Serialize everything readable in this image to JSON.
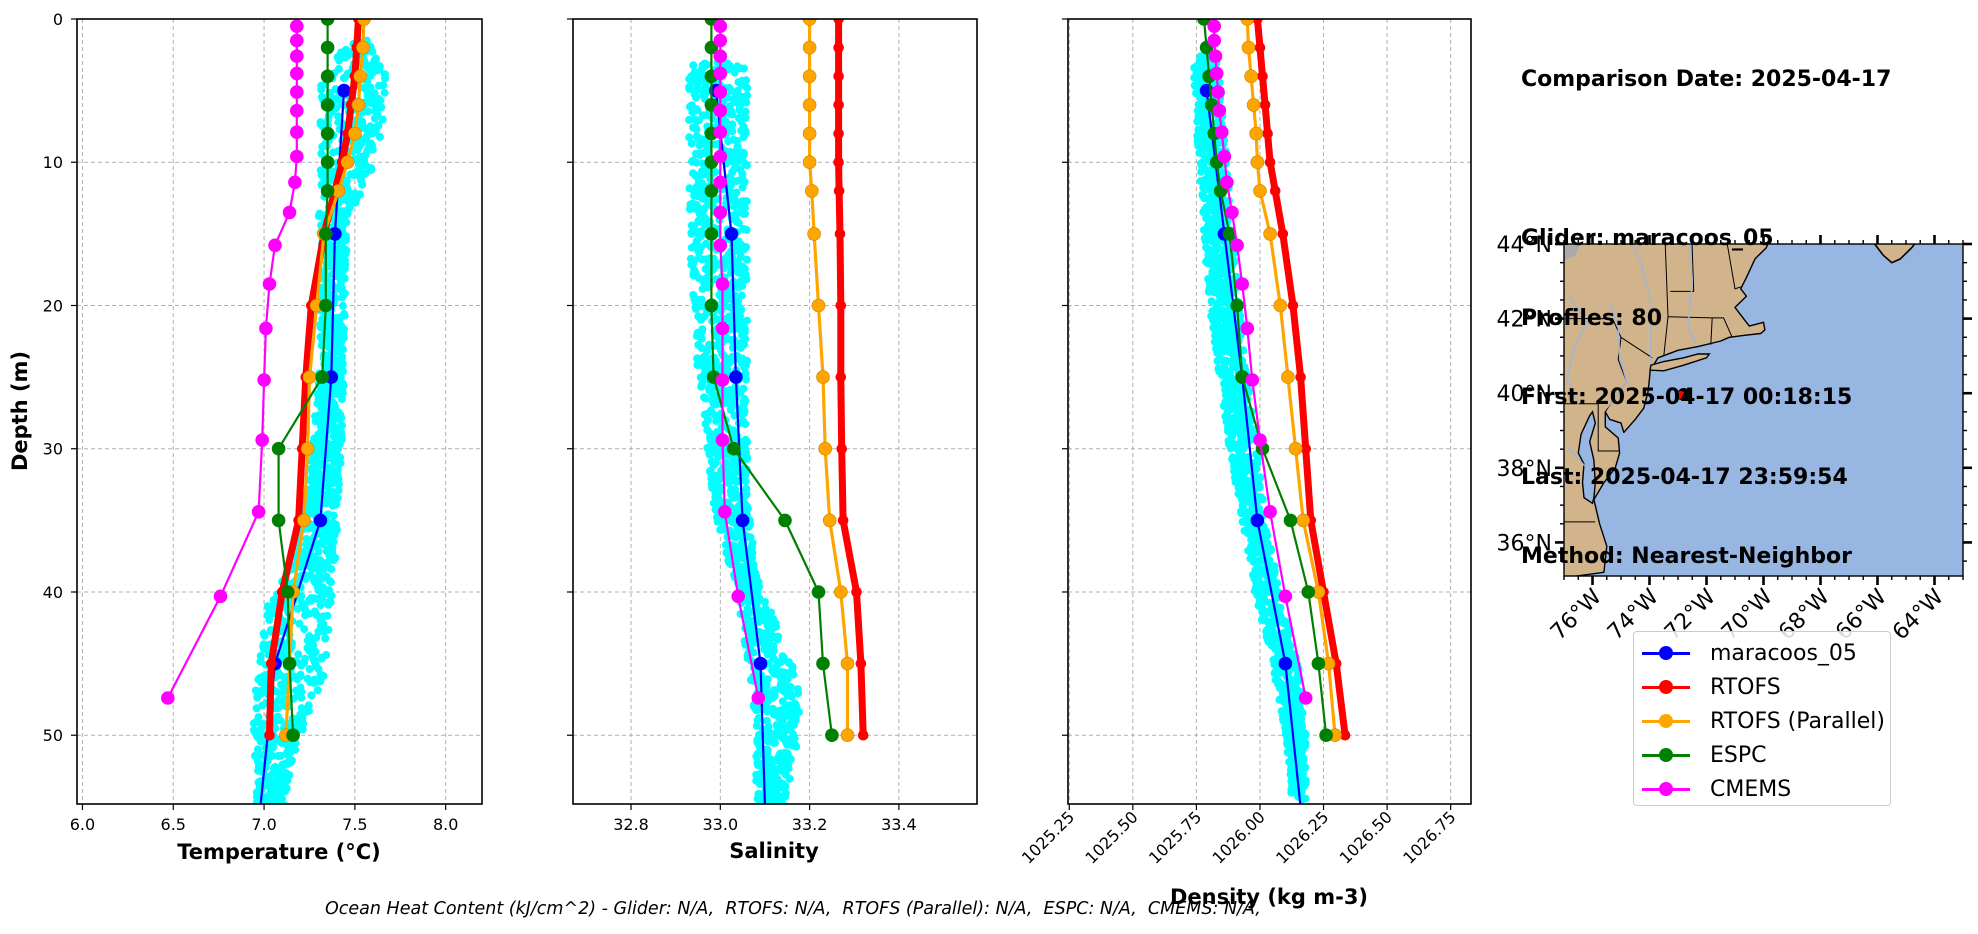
{
  "info": {
    "comparison_date": "Comparison Date: 2025-04-17",
    "glider": "Glider: maracoos_05",
    "profiles": "Profiles: 80",
    "first": "First: 2025-04-17 00:18:15",
    "last": "Last: 2025-04-17 23:59:54",
    "method": "Method: Nearest-Neighbor"
  },
  "footer": {
    "ohc_text": "Ocean Heat Content (kJ/cm^2) - Glider: N/A,  RTOFS: N/A,  RTOFS (Parallel): N/A,  ESPC: N/A,  CMEMS: N/A,"
  },
  "colors": {
    "glider": "#0000ff",
    "glider_scatter": "#00ffff",
    "rtofs": "#ff0000",
    "rtofs_parallel": "#ffa500",
    "espc": "#008000",
    "cmems": "#ff00ff",
    "land": "#d2b48c",
    "ocean": "#97b6e1",
    "grid": "#b0b0b0"
  },
  "legend": [
    {
      "key": "glider",
      "label": "maracoos_05"
    },
    {
      "key": "rtofs",
      "label": "RTOFS"
    },
    {
      "key": "rtofs_parallel",
      "label": "RTOFS (Parallel)"
    },
    {
      "key": "espc",
      "label": "ESPC"
    },
    {
      "key": "cmems",
      "label": "CMEMS"
    }
  ],
  "chart_data": [
    {
      "type": "line",
      "id": "temperature",
      "title": "",
      "xlabel": "Temperature (°C)",
      "ylabel": "Depth (m)",
      "xlim": [
        5.97,
        8.2
      ],
      "ylim": [
        54.8,
        0
      ],
      "xticks": [
        6.0,
        6.5,
        7.0,
        7.5,
        8.0
      ],
      "xtick_labels": [
        "6.0",
        "6.5",
        "7.0",
        "7.5",
        "8.0"
      ],
      "yticks": [
        0,
        10,
        20,
        30,
        40,
        50
      ],
      "ytick_labels": [
        "0",
        "10",
        "20",
        "30",
        "40",
        "50"
      ],
      "grid": true,
      "scatter_envelope": {
        "depth": [
          1.5,
          3,
          5,
          8,
          11,
          14,
          18,
          25,
          32,
          38,
          41,
          46,
          50,
          54
        ],
        "min": [
          7.52,
          7.33,
          7.31,
          7.31,
          7.31,
          7.3,
          7.31,
          7.3,
          7.25,
          7.15,
          7.02,
          6.95,
          6.94,
          6.96
        ],
        "max": [
          7.62,
          7.66,
          7.68,
          7.65,
          7.58,
          7.46,
          7.45,
          7.44,
          7.42,
          7.39,
          7.37,
          7.33,
          7.2,
          7.12
        ]
      },
      "series": [
        {
          "name": "maracoos_05",
          "key": "glider",
          "depth": [
            5,
            15,
            25,
            35,
            45,
            55
          ],
          "values": [
            7.44,
            7.39,
            7.37,
            7.31,
            7.06,
            6.98
          ],
          "markers_upto": 45
        },
        {
          "name": "RTOFS",
          "key": "rtofs",
          "depth": [
            0,
            2,
            4,
            6,
            8,
            10,
            12,
            15,
            20,
            25,
            30,
            35,
            40,
            45,
            50
          ],
          "values": [
            7.52,
            7.51,
            7.5,
            7.48,
            7.46,
            7.43,
            7.39,
            7.33,
            7.26,
            7.23,
            7.21,
            7.19,
            7.1,
            7.04,
            7.03
          ]
        },
        {
          "name": "RTOFS (Parallel)",
          "key": "rtofs_parallel",
          "depth": [
            0,
            2,
            4,
            6,
            8,
            10,
            12,
            15,
            20,
            25,
            30,
            35,
            40,
            45,
            50
          ],
          "values": [
            7.55,
            7.545,
            7.53,
            7.52,
            7.5,
            7.46,
            7.41,
            7.33,
            7.29,
            7.25,
            7.24,
            7.22,
            7.16,
            7.14,
            7.12
          ]
        },
        {
          "name": "ESPC",
          "key": "espc",
          "depth": [
            0,
            2,
            4,
            6,
            8,
            10,
            12,
            15,
            20,
            25,
            30,
            35,
            40,
            45,
            50
          ],
          "values": [
            7.35,
            7.35,
            7.35,
            7.35,
            7.35,
            7.35,
            7.35,
            7.34,
            7.34,
            7.32,
            7.08,
            7.08,
            7.13,
            7.14,
            7.16
          ]
        },
        {
          "name": "CMEMS",
          "key": "cmems",
          "depth": [
            0.5,
            1.5,
            2.6,
            3.8,
            5.1,
            6.4,
            7.9,
            9.6,
            11.4,
            13.5,
            15.8,
            18.5,
            21.6,
            25.2,
            29.4,
            34.4,
            40.3,
            47.4
          ],
          "values": [
            7.18,
            7.18,
            7.18,
            7.18,
            7.18,
            7.18,
            7.18,
            7.18,
            7.17,
            7.14,
            7.06,
            7.03,
            7.01,
            7.0,
            6.99,
            6.97,
            6.76,
            6.47
          ]
        }
      ]
    },
    {
      "type": "line",
      "id": "salinity",
      "title": "",
      "xlabel": "Salinity",
      "ylabel": "",
      "xlim": [
        32.67,
        33.575
      ],
      "ylim": [
        54.8,
        0
      ],
      "xticks": [
        32.8,
        33.0,
        33.2,
        33.4
      ],
      "xtick_labels": [
        "32.8",
        "33.0",
        "33.2",
        "33.4"
      ],
      "yticks": [
        0,
        10,
        20,
        30,
        40,
        50
      ],
      "ytick_labels": [],
      "grid": true,
      "scatter_envelope": {
        "depth": [
          3,
          6,
          10,
          15,
          20,
          25,
          30,
          33,
          36,
          40,
          43,
          47,
          51,
          54
        ],
        "min": [
          32.93,
          32.93,
          32.93,
          32.93,
          32.94,
          32.95,
          32.97,
          32.98,
          33.0,
          33.04,
          33.05,
          33.07,
          33.08,
          33.08
        ],
        "max": [
          33.06,
          33.06,
          33.06,
          33.06,
          33.06,
          33.06,
          33.06,
          33.06,
          33.07,
          33.09,
          33.14,
          33.18,
          33.17,
          33.15
        ]
      },
      "series": [
        {
          "name": "maracoos_05",
          "key": "glider",
          "depth": [
            5,
            15,
            25,
            35,
            45,
            55
          ],
          "values": [
            32.99,
            33.025,
            33.035,
            33.05,
            33.09,
            33.1
          ],
          "markers_upto": 45
        },
        {
          "name": "RTOFS",
          "key": "rtofs",
          "depth": [
            0,
            2,
            4,
            6,
            8,
            10,
            12,
            15,
            20,
            25,
            30,
            35,
            40,
            45,
            50
          ],
          "values": [
            33.265,
            33.265,
            33.265,
            33.265,
            33.265,
            33.265,
            33.266,
            33.268,
            33.27,
            33.27,
            33.272,
            33.275,
            33.305,
            33.315,
            33.32
          ]
        },
        {
          "name": "RTOFS (Parallel)",
          "key": "rtofs_parallel",
          "depth": [
            0,
            2,
            4,
            6,
            8,
            10,
            12,
            15,
            20,
            25,
            30,
            35,
            40,
            45,
            50
          ],
          "values": [
            33.2,
            33.2,
            33.2,
            33.2,
            33.2,
            33.2,
            33.205,
            33.21,
            33.22,
            33.23,
            33.235,
            33.245,
            33.27,
            33.285,
            33.285
          ]
        },
        {
          "name": "ESPC",
          "key": "espc",
          "depth": [
            0,
            2,
            4,
            6,
            8,
            10,
            12,
            15,
            20,
            25,
            30,
            35,
            40,
            45,
            50
          ],
          "values": [
            32.98,
            32.98,
            32.98,
            32.98,
            32.98,
            32.98,
            32.98,
            32.98,
            32.98,
            32.985,
            33.03,
            33.145,
            33.22,
            33.23,
            33.25
          ]
        },
        {
          "name": "CMEMS",
          "key": "cmems",
          "depth": [
            0.5,
            1.5,
            2.6,
            3.8,
            5.1,
            6.4,
            7.9,
            9.6,
            11.4,
            13.5,
            15.8,
            18.5,
            21.6,
            25.2,
            29.4,
            34.4,
            40.3,
            47.4
          ],
          "values": [
            33.0,
            33.0,
            33.0,
            33.0,
            33.0,
            33.0,
            33.0,
            33.0,
            33.0,
            33.0,
            33.0,
            33.005,
            33.005,
            33.005,
            33.005,
            33.01,
            33.04,
            33.085
          ]
        }
      ]
    },
    {
      "type": "line",
      "id": "density",
      "title": "",
      "xlabel": "Density (kg m-3)",
      "ylabel": "",
      "xlim": [
        1025.245,
        1026.83
      ],
      "ylim": [
        54.8,
        0
      ],
      "xticks": [
        1025.25,
        1025.5,
        1025.75,
        1026.0,
        1026.25,
        1026.5,
        1026.75
      ],
      "xtick_labels": [
        "1025.25",
        "1025.50",
        "1025.75",
        "1026.00",
        "1026.25",
        "1026.50",
        "1026.75"
      ],
      "yticks": [
        0,
        10,
        20,
        30,
        40,
        50
      ],
      "ytick_labels": [],
      "grid": true,
      "scatter_envelope": {
        "depth": [
          2.5,
          5,
          10,
          15,
          20,
          25,
          30,
          35,
          40,
          45,
          50,
          53
        ],
        "min": [
          1025.74,
          1025.74,
          1025.76,
          1025.78,
          1025.8,
          1025.84,
          1025.88,
          1025.93,
          1025.98,
          1026.05,
          1026.1,
          1026.12
        ],
        "max": [
          1025.83,
          1025.85,
          1025.87,
          1025.89,
          1025.92,
          1025.95,
          1025.99,
          1026.02,
          1026.08,
          1026.15,
          1026.18,
          1026.18
        ]
      },
      "series": [
        {
          "name": "maracoos_05",
          "key": "glider",
          "depth": [
            5,
            15,
            25,
            35,
            45,
            55
          ],
          "values": [
            1025.79,
            1025.86,
            1025.93,
            1025.99,
            1026.1,
            1026.16
          ],
          "markers_upto": 45
        },
        {
          "name": "RTOFS",
          "key": "rtofs",
          "depth": [
            0,
            2,
            4,
            6,
            8,
            10,
            12,
            15,
            20,
            25,
            30,
            35,
            40,
            45,
            50
          ],
          "values": [
            1025.99,
            1026.0,
            1026.01,
            1026.02,
            1026.03,
            1026.04,
            1026.06,
            1026.09,
            1026.13,
            1026.16,
            1026.18,
            1026.2,
            1026.25,
            1026.3,
            1026.335
          ]
        },
        {
          "name": "RTOFS (Parallel)",
          "key": "rtofs_parallel",
          "depth": [
            0,
            2,
            4,
            6,
            8,
            10,
            12,
            15,
            20,
            25,
            30,
            35,
            40,
            45,
            50
          ],
          "values": [
            1025.95,
            1025.955,
            1025.965,
            1025.975,
            1025.985,
            1025.99,
            1026.0,
            1026.04,
            1026.08,
            1026.11,
            1026.14,
            1026.17,
            1026.23,
            1026.27,
            1026.295
          ]
        },
        {
          "name": "ESPC",
          "key": "espc",
          "depth": [
            0,
            2,
            4,
            6,
            8,
            10,
            12,
            15,
            20,
            25,
            30,
            35,
            40,
            45,
            50
          ],
          "values": [
            1025.78,
            1025.79,
            1025.8,
            1025.81,
            1025.82,
            1025.83,
            1025.845,
            1025.88,
            1025.91,
            1025.93,
            1026.01,
            1026.12,
            1026.19,
            1026.23,
            1026.26
          ]
        },
        {
          "name": "CMEMS",
          "key": "cmems",
          "depth": [
            0.5,
            1.5,
            2.6,
            3.8,
            5.1,
            6.4,
            7.9,
            9.6,
            11.4,
            13.5,
            15.8,
            18.5,
            21.6,
            25.2,
            29.4,
            34.4,
            40.3,
            47.4
          ],
          "values": [
            1025.82,
            1025.82,
            1025.825,
            1025.83,
            1025.835,
            1025.84,
            1025.85,
            1025.86,
            1025.87,
            1025.89,
            1025.91,
            1025.93,
            1025.95,
            1025.97,
            1026.0,
            1026.04,
            1026.1,
            1026.18
          ]
        }
      ]
    },
    {
      "type": "map",
      "id": "location-map",
      "lon_range": [
        -77.0,
        -63.0
      ],
      "lat_range": [
        35.1,
        44.0
      ],
      "xticks": [
        -76,
        -74,
        -72,
        -70,
        -68,
        -66,
        -64
      ],
      "xtick_labels": [
        "76°W",
        "74°W",
        "72°W",
        "70°W",
        "68°W",
        "66°W",
        "64°W"
      ],
      "yticks": [
        36,
        38,
        40,
        42,
        44
      ],
      "ytick_labels": [
        "36°N",
        "38°N",
        "40°N",
        "42°N",
        "44°N"
      ],
      "glider_track": {
        "lon": -72.8,
        "lat": 39.98
      },
      "model_point": {
        "lon": -72.9,
        "lat": 39.95
      }
    }
  ]
}
